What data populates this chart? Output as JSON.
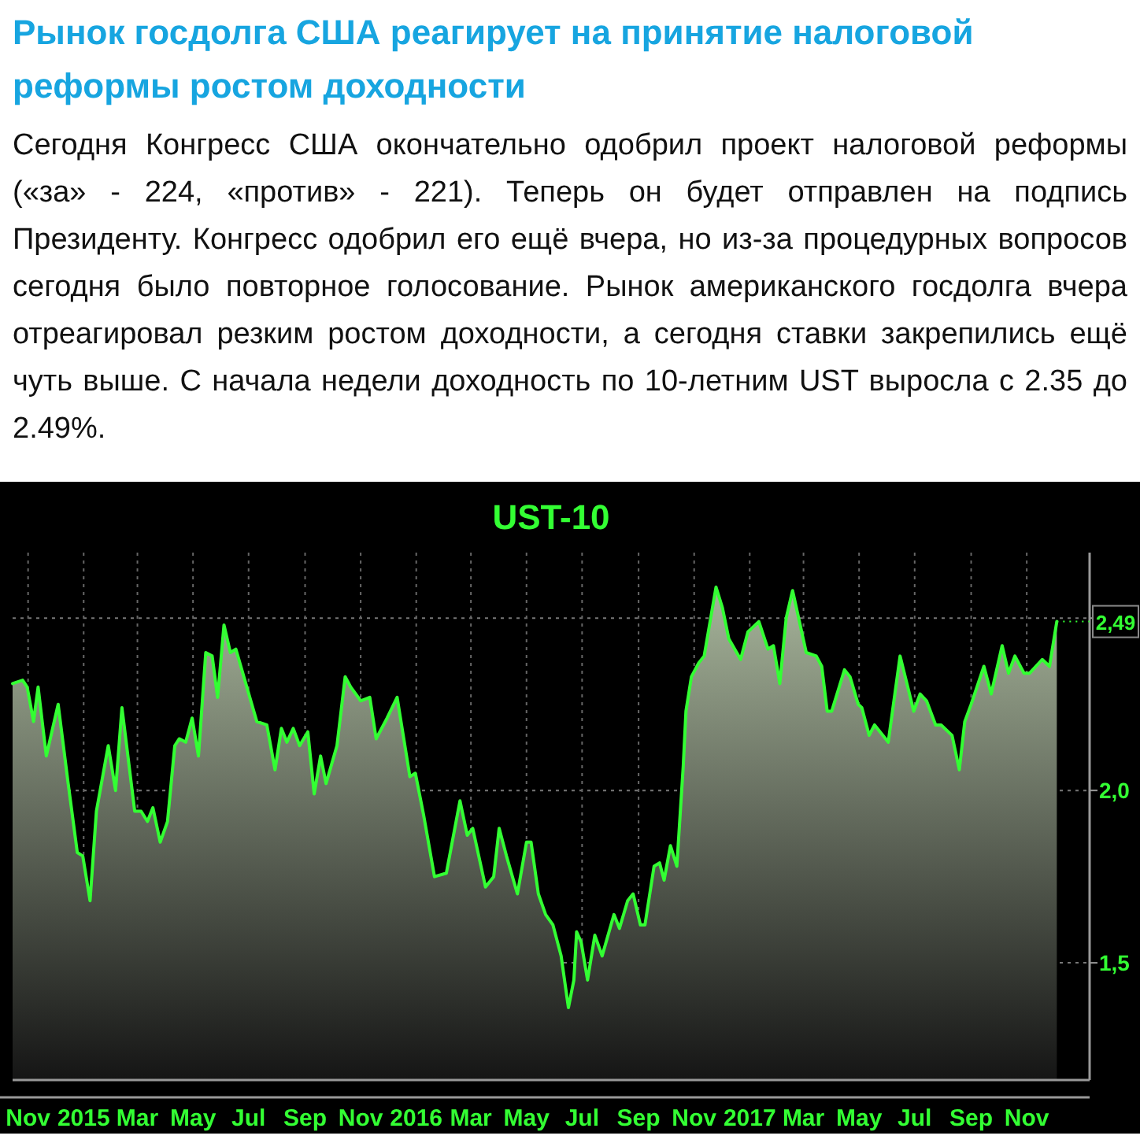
{
  "chart_data": {
    "type": "area",
    "title": "Рынок госдолга США реагирует на принятие налоговой реформы ростом доходности",
    "subtitle": "Сегодня Конгресс США окончательно одобрил проект налоговой реформы («за» - 224, «против» - 221). Теперь он будет отправлен на подпись Президенту. Конгресс одобрил его ещё вчера, но из-за процедурных вопросов сегодня было повторное голосование. Рынок американского госдолга вчера отреагировал резким ростом доходности, а сегодня ставки закрепились ещё чуть выше. С начала недели доходность по 10-летним UST выросла с 2.35 до 2.49%.",
    "x": [
      "2014-10-30",
      "2014-11-10",
      "2014-11-15",
      "2014-11-22",
      "2014-11-27",
      "2014-12-06",
      "2014-12-19",
      "2014-12-30",
      "2015-01-09",
      "2015-01-15",
      "2015-01-23",
      "2015-01-30",
      "2015-02-12",
      "2015-02-20",
      "2015-02-27",
      "2015-03-13",
      "2015-03-20",
      "2015-03-27",
      "2015-04-02",
      "2015-04-10",
      "2015-04-18",
      "2015-04-26",
      "2015-05-01",
      "2015-05-08",
      "2015-05-15",
      "2015-05-22",
      "2015-05-30",
      "2015-06-06",
      "2015-06-12",
      "2015-06-19",
      "2015-06-26",
      "2015-07-02",
      "2015-07-25",
      "2015-08-05",
      "2015-08-14",
      "2015-08-21",
      "2015-08-27",
      "2015-09-03",
      "2015-09-10",
      "2015-09-19",
      "2015-09-26",
      "2015-10-03",
      "2015-10-09",
      "2015-10-21",
      "2015-10-30",
      "2015-11-05",
      "2015-11-16",
      "2015-11-26",
      "2015-12-03",
      "2015-12-15",
      "2015-12-26",
      "2016-01-09",
      "2016-01-15",
      "2016-01-24",
      "2016-02-05",
      "2016-02-18",
      "2016-03-04",
      "2016-03-12",
      "2016-03-18",
      "2016-04-01",
      "2016-04-10",
      "2016-04-16",
      "2016-04-24",
      "2016-05-06",
      "2016-05-16",
      "2016-05-21",
      "2016-05-29",
      "2016-06-06",
      "2016-06-14",
      "2016-06-23",
      "2016-07-01",
      "2016-07-07",
      "2016-07-10",
      "2016-07-15",
      "2016-07-22",
      "2016-07-30",
      "2016-08-07",
      "2016-08-20",
      "2016-08-26",
      "2016-09-04",
      "2016-09-10",
      "2016-09-18",
      "2016-09-23",
      "2016-10-03",
      "2016-10-09",
      "2016-10-14",
      "2016-10-21",
      "2016-10-28",
      "2016-11-04",
      "2016-11-07",
      "2016-11-13",
      "2016-11-21",
      "2016-11-27",
      "2016-12-10",
      "2016-12-17",
      "2016-12-24",
      "2017-01-06",
      "2017-01-14",
      "2017-01-26",
      "2017-02-05",
      "2017-02-11",
      "2017-02-18",
      "2017-02-25",
      "2017-03-04",
      "2017-03-19",
      "2017-03-30",
      "2017-04-05",
      "2017-04-11",
      "2017-04-16",
      "2017-04-30",
      "2017-05-06",
      "2017-05-15",
      "2017-05-19",
      "2017-05-27",
      "2017-06-02",
      "2017-06-17",
      "2017-06-30",
      "2017-07-15",
      "2017-07-22",
      "2017-07-29",
      "2017-08-08",
      "2017-08-14",
      "2017-08-26",
      "2017-09-03",
      "2017-09-09",
      "2017-09-16",
      "2017-09-30",
      "2017-10-08",
      "2017-10-20",
      "2017-10-27",
      "2017-11-03",
      "2017-11-13",
      "2017-11-19",
      "2017-12-03",
      "2017-12-11",
      "2017-12-19"
    ],
    "series": [
      {
        "name": "UST-10",
        "color": "#33ff33",
        "values": [
          2.31,
          2.32,
          2.3,
          2.2,
          2.3,
          2.1,
          2.25,
          2.02,
          1.82,
          1.81,
          1.68,
          1.94,
          2.13,
          2.0,
          2.24,
          1.94,
          1.94,
          1.91,
          1.95,
          1.85,
          1.91,
          2.13,
          2.15,
          2.14,
          2.21,
          2.1,
          2.4,
          2.39,
          2.27,
          2.48,
          2.4,
          2.41,
          2.2,
          2.19,
          2.06,
          2.18,
          2.14,
          2.18,
          2.13,
          2.17,
          1.99,
          2.1,
          2.02,
          2.13,
          2.33,
          2.3,
          2.26,
          2.27,
          2.15,
          2.21,
          2.27,
          2.04,
          2.05,
          1.93,
          1.75,
          1.76,
          1.97,
          1.87,
          1.89,
          1.72,
          1.75,
          1.89,
          1.81,
          1.7,
          1.85,
          1.85,
          1.7,
          1.64,
          1.61,
          1.52,
          1.37,
          1.45,
          1.59,
          1.56,
          1.45,
          1.58,
          1.52,
          1.64,
          1.6,
          1.68,
          1.7,
          1.61,
          1.61,
          1.78,
          1.79,
          1.74,
          1.84,
          1.78,
          2.07,
          2.23,
          2.33,
          2.37,
          2.39,
          2.59,
          2.53,
          2.44,
          2.38,
          2.46,
          2.49,
          2.41,
          2.42,
          2.31,
          2.5,
          2.58,
          2.4,
          2.39,
          2.36,
          2.23,
          2.23,
          2.35,
          2.33,
          2.25,
          2.24,
          2.16,
          2.19,
          2.14,
          2.39,
          2.23,
          2.28,
          2.26,
          2.19,
          2.19,
          2.16,
          2.06,
          2.2,
          2.25,
          2.36,
          2.28,
          2.42,
          2.34,
          2.39,
          2.34,
          2.34,
          2.38,
          2.36,
          2.49
        ]
      }
    ],
    "xlim": [
      "2014-10-30",
      "2018-01-24"
    ],
    "xticks": [
      {
        "value": "2014-11-16",
        "label": "Nov"
      },
      {
        "value": "2015-01-16",
        "label": "2015"
      },
      {
        "value": "2015-03-16",
        "label": "Mar"
      },
      {
        "value": "2015-05-16",
        "label": "May"
      },
      {
        "value": "2015-07-16",
        "label": "Jul"
      },
      {
        "value": "2015-09-16",
        "label": "Sep"
      },
      {
        "value": "2015-11-16",
        "label": "Nov"
      },
      {
        "value": "2016-01-16",
        "label": "2016"
      },
      {
        "value": "2016-03-16",
        "label": "Mar"
      },
      {
        "value": "2016-05-16",
        "label": "May"
      },
      {
        "value": "2016-07-16",
        "label": "Jul"
      },
      {
        "value": "2016-09-16",
        "label": "Sep"
      },
      {
        "value": "2016-11-16",
        "label": "Nov"
      },
      {
        "value": "2017-01-16",
        "label": "2017"
      },
      {
        "value": "2017-03-16",
        "label": "Mar"
      },
      {
        "value": "2017-05-16",
        "label": "May"
      },
      {
        "value": "2017-07-16",
        "label": "Jul"
      },
      {
        "value": "2017-09-16",
        "label": "Sep"
      },
      {
        "value": "2017-11-16",
        "label": "Nov"
      }
    ],
    "ylim": [
      1.16,
      2.69
    ],
    "yticks": [
      {
        "value": 1.5,
        "label": "1,5"
      },
      {
        "value": 2.0,
        "label": "2,0"
      },
      {
        "value": 2.5,
        "label": null
      }
    ],
    "grid": true,
    "annotations": [
      {
        "text": "2,49",
        "x": "2017-12-19",
        "y": 2.49
      }
    ]
  }
}
